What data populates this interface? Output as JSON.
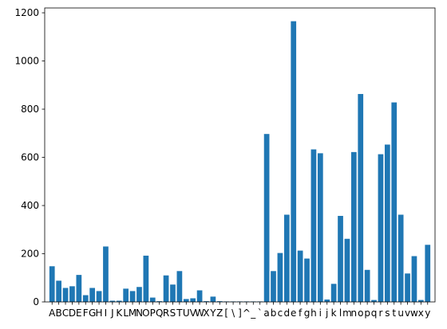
{
  "chart_data": {
    "type": "bar",
    "title": "",
    "xlabel": "",
    "ylabel": "",
    "ylim": [
      0,
      1220
    ],
    "yticks": [
      0,
      200,
      400,
      600,
      800,
      1000,
      1200
    ],
    "grid": false,
    "bar_color": "#1f77b4",
    "categories": [
      "A",
      "B",
      "C",
      "D",
      "E",
      "F",
      "G",
      "H",
      "I",
      "J",
      "K",
      "L",
      "M",
      "N",
      "O",
      "P",
      "Q",
      "R",
      "S",
      "T",
      "U",
      "V",
      "W",
      "X",
      "Y",
      "Z",
      "[",
      "\\",
      "]",
      "^",
      "_",
      "`",
      "a",
      "b",
      "c",
      "d",
      "e",
      "f",
      "g",
      "h",
      "i",
      "j",
      "k",
      "l",
      "m",
      "n",
      "o",
      "p",
      "q",
      "r",
      "s",
      "t",
      "u",
      "v",
      "w",
      "x",
      "y"
    ],
    "values": [
      148,
      88,
      58,
      65,
      112,
      28,
      58,
      45,
      230,
      5,
      5,
      55,
      45,
      62,
      192,
      18,
      3,
      110,
      72,
      128,
      12,
      15,
      48,
      3,
      22,
      3,
      2,
      2,
      2,
      2,
      2,
      2,
      697,
      128,
      203,
      362,
      1165,
      213,
      180,
      633,
      617,
      10,
      75,
      357,
      262,
      622,
      863,
      133,
      8,
      613,
      653,
      828,
      362,
      118,
      190,
      8,
      237
    ]
  }
}
